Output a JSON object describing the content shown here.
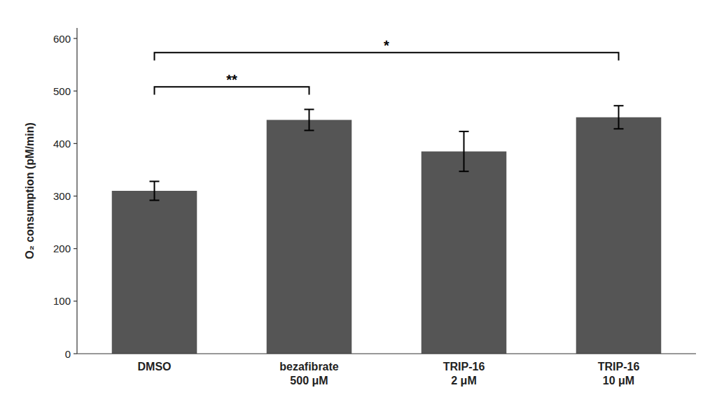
{
  "chart_data": {
    "type": "bar",
    "ylabel": "O₂ consumption (pM/min)",
    "categories": [
      "DMSO",
      "bezafibrate\n500 μM",
      "TRIP-16\n2 μM",
      "TRIP-16\n10 μM"
    ],
    "values": [
      310,
      445,
      385,
      450
    ],
    "errors": [
      18,
      20,
      38,
      22
    ],
    "color": "#555555",
    "ylim": [
      0,
      620
    ],
    "yticks": [
      0,
      100,
      200,
      300,
      400,
      500,
      600
    ],
    "grid": false,
    "annotations": [
      {
        "label": "**",
        "x1": 0,
        "x2": 1,
        "y": 508,
        "drop": 15
      },
      {
        "label": "*",
        "x1": 0,
        "x2": 3,
        "y": 573,
        "drop": 15
      }
    ]
  }
}
